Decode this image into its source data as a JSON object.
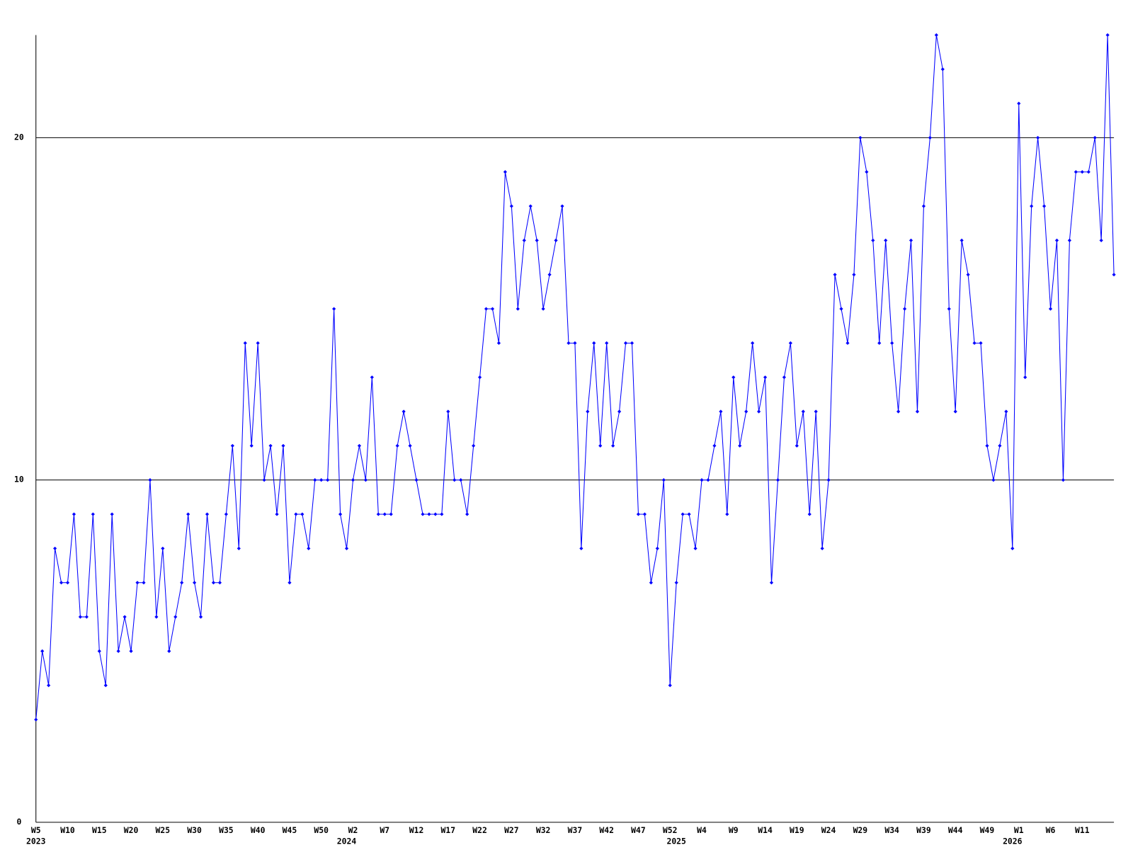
{
  "chart_data": {
    "type": "line",
    "color": "#0000ff",
    "grid": true,
    "ylim": [
      0,
      23
    ],
    "yticks": [
      0,
      10,
      20
    ],
    "categories": [
      "W5",
      null,
      null,
      null,
      null,
      "W10",
      null,
      null,
      null,
      null,
      "W15",
      null,
      null,
      null,
      null,
      "W20",
      null,
      null,
      null,
      null,
      "W25",
      null,
      null,
      null,
      null,
      "W30",
      null,
      null,
      null,
      null,
      "W35",
      null,
      null,
      null,
      null,
      "W40",
      null,
      null,
      null,
      null,
      "W45",
      null,
      null,
      null,
      null,
      "W50",
      null,
      null,
      null,
      null,
      "W2",
      null,
      null,
      null,
      null,
      "W7",
      null,
      null,
      null,
      null,
      "W12",
      null,
      null,
      null,
      null,
      "W17",
      null,
      null,
      null,
      null,
      "W22",
      null,
      null,
      null,
      null,
      "W27",
      null,
      null,
      null,
      null,
      "W32",
      null,
      null,
      null,
      null,
      "W37",
      null,
      null,
      null,
      null,
      "W42",
      null,
      null,
      null,
      null,
      "W47",
      null,
      null,
      null,
      null,
      "W52",
      null,
      null,
      null,
      null,
      "W4",
      null,
      null,
      null,
      null,
      "W9",
      null,
      null,
      null,
      null,
      "W14",
      null,
      null,
      null,
      null,
      "W19",
      null,
      null,
      null,
      null,
      "W24",
      null,
      null,
      null,
      null,
      "W29",
      null,
      null,
      null,
      null,
      "W34",
      null,
      null,
      null,
      null,
      "W39",
      null,
      null,
      null,
      null,
      "W44",
      null,
      null,
      null,
      null,
      "W49",
      null,
      null,
      null,
      null,
      "W1",
      null,
      null,
      null,
      null,
      "W6",
      null,
      null,
      null,
      null,
      "W11",
      null,
      null,
      null,
      null,
      null
    ],
    "years": [
      "2023",
      null,
      null,
      null,
      null,
      null,
      null,
      null,
      null,
      null,
      null,
      null,
      null,
      null,
      null,
      null,
      null,
      null,
      null,
      null,
      null,
      null,
      null,
      null,
      null,
      null,
      null,
      null,
      null,
      null,
      null,
      null,
      null,
      null,
      null,
      null,
      null,
      null,
      null,
      null,
      null,
      null,
      null,
      null,
      null,
      null,
      null,
      null,
      null,
      "2024",
      null,
      null,
      null,
      null,
      null,
      null,
      null,
      null,
      null,
      null,
      null,
      null,
      null,
      null,
      null,
      null,
      null,
      null,
      null,
      null,
      null,
      null,
      null,
      null,
      null,
      null,
      null,
      null,
      null,
      null,
      null,
      null,
      null,
      null,
      null,
      null,
      null,
      null,
      null,
      null,
      null,
      null,
      null,
      null,
      null,
      null,
      null,
      null,
      null,
      null,
      null,
      "2025",
      null,
      null,
      null,
      null,
      null,
      null,
      null,
      null,
      null,
      null,
      null,
      null,
      null,
      null,
      null,
      null,
      null,
      null,
      null,
      null,
      null,
      null,
      null,
      null,
      null,
      null,
      null,
      null,
      null,
      null,
      null,
      null,
      null,
      null,
      null,
      null,
      null,
      null,
      null,
      null,
      null,
      null,
      null,
      null,
      null,
      null,
      null,
      null,
      null,
      null,
      null,
      null,
      "2026",
      null,
      null,
      null,
      null,
      null,
      null,
      null,
      null,
      null,
      null,
      null,
      null,
      null,
      null,
      null,
      null
    ],
    "values": [
      3,
      5,
      4,
      8,
      7,
      7,
      9,
      6,
      6,
      9,
      5,
      4,
      9,
      5,
      6,
      5,
      7,
      7,
      10,
      6,
      8,
      5,
      6,
      7,
      9,
      7,
      6,
      9,
      7,
      7,
      9,
      11,
      8,
      14,
      11,
      14,
      10,
      11,
      9,
      11,
      7,
      9,
      9,
      8,
      10,
      10,
      10,
      15,
      9,
      8,
      10,
      11,
      10,
      13,
      9,
      9,
      9,
      11,
      12,
      11,
      10,
      9,
      9,
      9,
      9,
      12,
      10,
      10,
      9,
      11,
      13,
      15,
      15,
      14,
      19,
      18,
      15,
      17,
      18,
      17,
      15,
      16,
      17,
      18,
      14,
      14,
      8,
      12,
      14,
      11,
      14,
      11,
      12,
      14,
      14,
      9,
      9,
      7,
      8,
      10,
      4,
      7,
      9,
      9,
      8,
      10,
      10,
      11,
      12,
      9,
      13,
      11,
      12,
      14,
      12,
      13,
      7,
      10,
      13,
      14,
      11,
      12,
      9,
      12,
      8,
      10,
      16,
      15,
      14,
      16,
      20,
      19,
      17,
      14,
      17,
      14,
      12,
      15,
      17,
      12,
      18,
      20,
      23,
      22,
      15,
      12,
      17,
      16,
      14,
      14,
      11,
      10,
      11,
      12,
      8,
      21,
      13,
      18,
      20,
      18,
      15,
      17,
      10,
      17,
      19,
      19,
      19,
      20,
      17,
      23,
      16
    ]
  }
}
